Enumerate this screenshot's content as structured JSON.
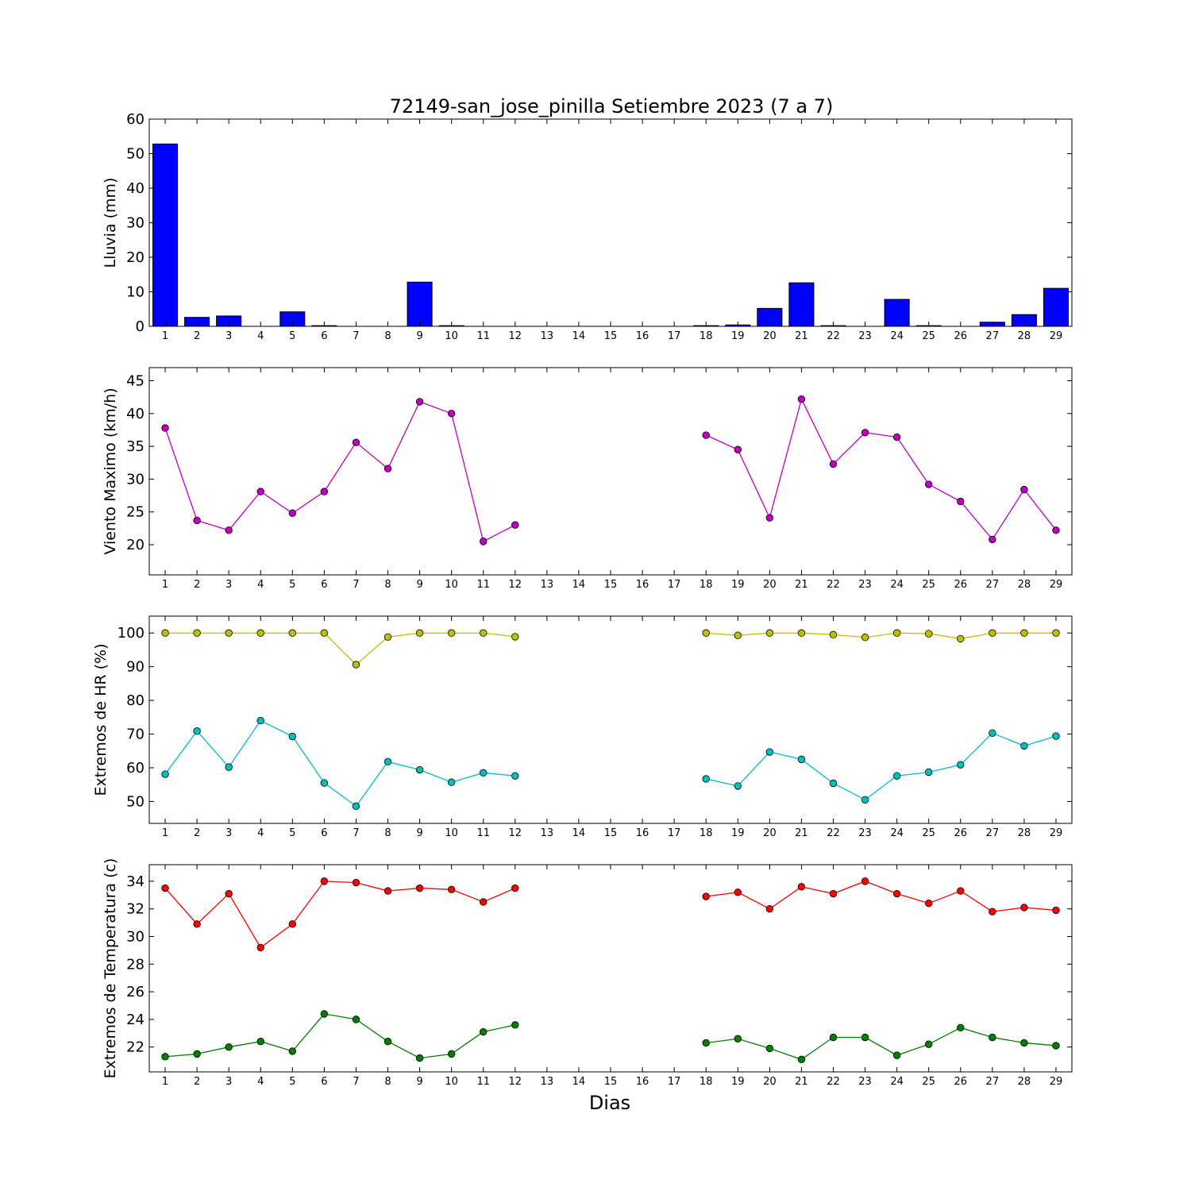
{
  "chart_data": [
    {
      "type": "bar",
      "title": "72149-san_jose_pinilla Setiembre 2023  (7 a 7)",
      "ylabel": "Lluvia (mm)",
      "xlabel": "",
      "ylim": [
        0,
        60
      ],
      "yticks": [
        0,
        10,
        20,
        30,
        40,
        50,
        60
      ],
      "categories": [
        "1",
        "2",
        "3",
        "4",
        "5",
        "6",
        "7",
        "8",
        "9",
        "10",
        "11",
        "12",
        "13",
        "14",
        "15",
        "16",
        "17",
        "18",
        "19",
        "20",
        "21",
        "22",
        "23",
        "24",
        "25",
        "26",
        "27",
        "28",
        "29"
      ],
      "series": [
        {
          "values": [
            52.8,
            2.6,
            3.0,
            0.0,
            4.2,
            0.2,
            0.0,
            0.0,
            12.8,
            0.2,
            0.0,
            0.0,
            null,
            null,
            null,
            null,
            null,
            0.2,
            0.4,
            5.2,
            12.6,
            0.2,
            0.0,
            7.8,
            0.2,
            0.0,
            1.2,
            3.4,
            11.0
          ],
          "color": "#0000ff"
        }
      ]
    },
    {
      "type": "line",
      "ylabel": "Viento Maximo (km/h)",
      "ylim": [
        15.4,
        47
      ],
      "yticks": [
        20,
        25,
        30,
        35,
        40,
        45
      ],
      "categories": [
        "1",
        "2",
        "3",
        "4",
        "5",
        "6",
        "7",
        "8",
        "9",
        "10",
        "11",
        "12",
        "13",
        "14",
        "15",
        "16",
        "17",
        "18",
        "19",
        "20",
        "21",
        "22",
        "23",
        "24",
        "25",
        "26",
        "27",
        "28",
        "29"
      ],
      "series": [
        {
          "values": [
            37.8,
            23.7,
            22.2,
            28.1,
            24.8,
            28.1,
            35.6,
            31.6,
            41.8,
            40.0,
            20.5,
            23.0,
            null,
            null,
            null,
            null,
            null,
            36.7,
            34.5,
            24.1,
            42.2,
            32.3,
            37.1,
            36.4,
            29.2,
            26.6,
            20.8,
            28.4,
            22.2
          ],
          "color": "#bf00bf"
        }
      ]
    },
    {
      "type": "line",
      "ylabel": "Extremos de HR (%)",
      "ylim": [
        43.5,
        105
      ],
      "yticks": [
        50,
        60,
        70,
        80,
        90,
        100
      ],
      "categories": [
        "1",
        "2",
        "3",
        "4",
        "5",
        "6",
        "7",
        "8",
        "9",
        "10",
        "11",
        "12",
        "13",
        "14",
        "15",
        "16",
        "17",
        "18",
        "19",
        "20",
        "21",
        "22",
        "23",
        "24",
        "25",
        "26",
        "27",
        "28",
        "29"
      ],
      "series": [
        {
          "values": [
            100,
            100,
            100,
            100,
            100,
            100,
            90.6,
            98.8,
            100,
            100,
            100,
            98.9,
            null,
            null,
            null,
            null,
            null,
            100,
            99.3,
            100,
            100,
            99.5,
            98.7,
            100,
            99.8,
            98.3,
            100,
            100,
            100
          ],
          "color": "#bfbf00"
        },
        {
          "values": [
            58.1,
            70.9,
            60.2,
            74.0,
            69.3,
            55.5,
            48.6,
            61.8,
            59.4,
            55.7,
            58.5,
            57.6,
            null,
            null,
            null,
            null,
            null,
            56.7,
            54.6,
            64.7,
            62.5,
            55.4,
            50.5,
            57.6,
            58.7,
            60.9,
            70.3,
            66.5,
            69.4
          ],
          "color": "#00bfbf"
        }
      ]
    },
    {
      "type": "line",
      "ylabel": "Extremos de Temperatura (c)",
      "xlabel": "Dias",
      "ylim": [
        20.2,
        35.2
      ],
      "yticks": [
        22,
        24,
        26,
        28,
        30,
        32,
        34
      ],
      "categories": [
        "1",
        "2",
        "3",
        "4",
        "5",
        "6",
        "7",
        "8",
        "9",
        "10",
        "11",
        "12",
        "13",
        "14",
        "15",
        "16",
        "17",
        "18",
        "19",
        "20",
        "21",
        "22",
        "23",
        "24",
        "25",
        "26",
        "27",
        "28",
        "29"
      ],
      "series": [
        {
          "values": [
            33.5,
            30.9,
            33.1,
            29.2,
            30.9,
            34.0,
            33.9,
            33.3,
            33.5,
            33.4,
            32.5,
            33.5,
            null,
            null,
            null,
            null,
            null,
            32.9,
            33.2,
            32.0,
            33.6,
            33.1,
            34.0,
            33.1,
            32.4,
            33.3,
            31.8,
            32.1,
            31.9
          ],
          "color": "#ff0000"
        },
        {
          "values": [
            21.3,
            21.5,
            22.0,
            22.4,
            21.7,
            24.4,
            24.0,
            22.4,
            21.2,
            21.5,
            23.1,
            23.6,
            null,
            null,
            null,
            null,
            null,
            22.3,
            22.6,
            21.9,
            21.1,
            22.7,
            22.7,
            21.4,
            22.2,
            23.4,
            22.7,
            22.3,
            22.1
          ],
          "color": "#007f00"
        }
      ]
    }
  ]
}
